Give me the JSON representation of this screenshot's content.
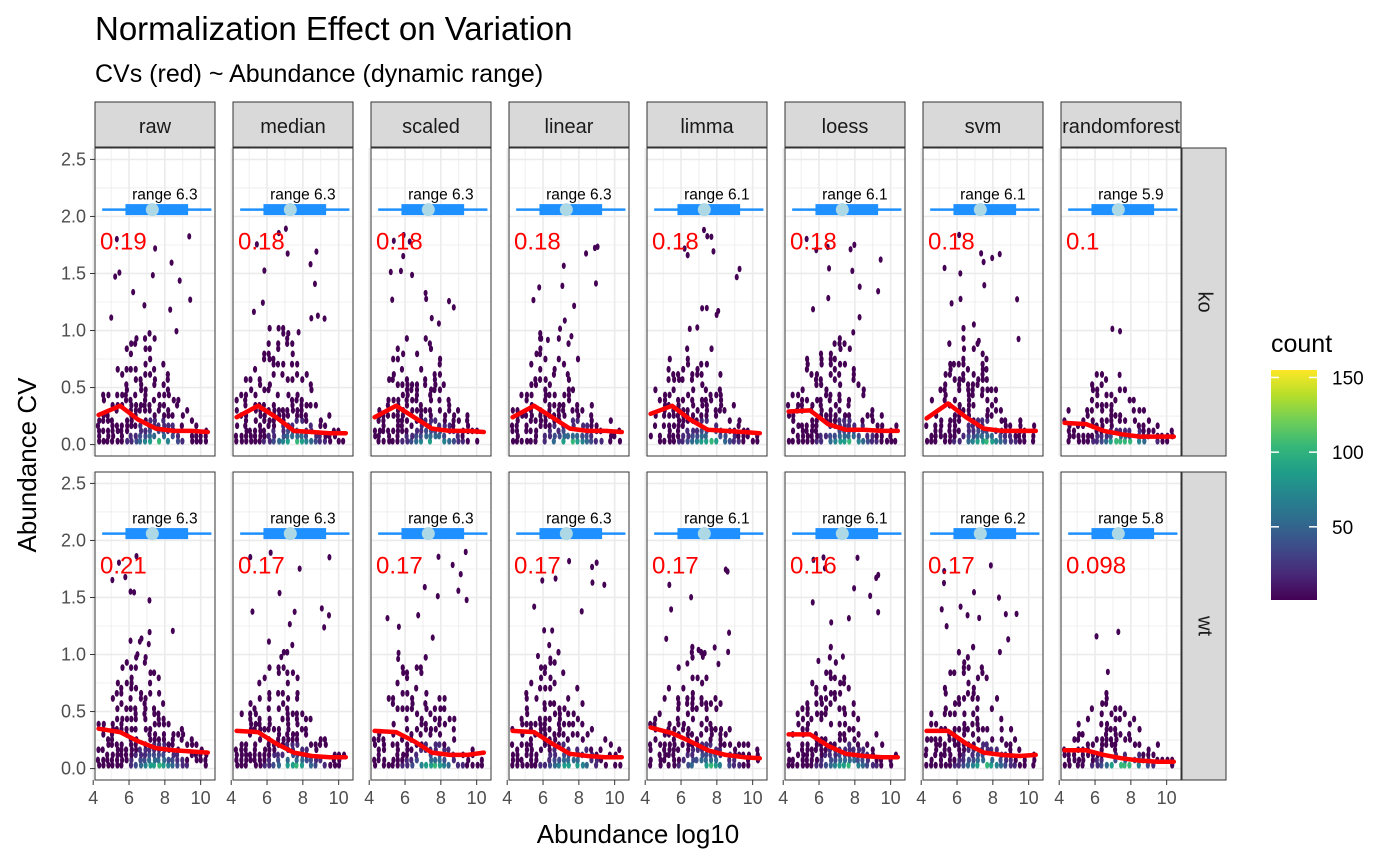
{
  "chart_data": {
    "type": "heatmap",
    "title": "Normalization Effect on Variation",
    "subtitle": "CVs (red) ~ Abundance (dynamic range)",
    "xlabel": "Abundance log10",
    "ylabel": "Abundance CV",
    "xlim": [
      4.1,
      10.8
    ],
    "ylim": [
      -0.1,
      2.6
    ],
    "x_ticks": [
      4,
      6,
      8,
      10
    ],
    "y_ticks": [
      0.0,
      0.5,
      1.0,
      1.5,
      2.0,
      2.5
    ],
    "x_tick_labels": [
      "4",
      "6",
      "8",
      "10"
    ],
    "y_tick_labels": [
      "0.0",
      "0.5",
      "1.0",
      "1.5",
      "2.0",
      "2.5"
    ],
    "grid": true,
    "columns": [
      "raw",
      "median",
      "scaled",
      "linear",
      "limma",
      "loess",
      "svm",
      "randomforest"
    ],
    "rows": [
      "ko",
      "wt"
    ],
    "range_prefix": "range",
    "range_box": {
      "y": 2.06,
      "whisker": [
        4.5,
        10.6
      ],
      "box": [
        5.8,
        9.3
      ],
      "median": 7.3
    },
    "range_labels": [
      [
        "6.3",
        "6.3",
        "6.3",
        "6.3",
        "6.1",
        "6.1",
        "6.1",
        "5.9"
      ],
      [
        "6.3",
        "6.3",
        "6.3",
        "6.3",
        "6.1",
        "6.1",
        "6.2",
        "5.8"
      ]
    ],
    "cv_labels": [
      [
        "0.19",
        "0.18",
        "0.18",
        "0.18",
        "0.18",
        "0.18",
        "0.18",
        "0.1"
      ],
      [
        "0.21",
        "0.17",
        "0.17",
        "0.17",
        "0.17",
        "0.16",
        "0.17",
        "0.098"
      ]
    ],
    "trend_x": [
      4.3,
      5.5,
      6.5,
      7.5,
      8.5,
      9.5,
      10.4
    ],
    "trend_y": [
      [
        [
          0.26,
          0.34,
          0.22,
          0.14,
          0.12,
          0.12,
          0.11
        ],
        [
          0.24,
          0.34,
          0.24,
          0.12,
          0.11,
          0.1,
          0.1
        ],
        [
          0.24,
          0.34,
          0.24,
          0.14,
          0.12,
          0.12,
          0.11
        ],
        [
          0.24,
          0.34,
          0.24,
          0.14,
          0.12,
          0.12,
          0.11
        ],
        [
          0.27,
          0.34,
          0.22,
          0.13,
          0.12,
          0.11,
          0.1
        ],
        [
          0.29,
          0.3,
          0.18,
          0.13,
          0.13,
          0.12,
          0.12
        ],
        [
          0.23,
          0.36,
          0.24,
          0.14,
          0.12,
          0.12,
          0.12
        ],
        [
          0.19,
          0.18,
          0.12,
          0.09,
          0.07,
          0.07,
          0.07
        ]
      ],
      [
        [
          0.35,
          0.32,
          0.24,
          0.18,
          0.16,
          0.15,
          0.14
        ],
        [
          0.33,
          0.32,
          0.22,
          0.14,
          0.11,
          0.1,
          0.1
        ],
        [
          0.33,
          0.32,
          0.24,
          0.14,
          0.12,
          0.12,
          0.14
        ],
        [
          0.33,
          0.32,
          0.22,
          0.13,
          0.11,
          0.1,
          0.1
        ],
        [
          0.36,
          0.31,
          0.24,
          0.16,
          0.12,
          0.1,
          0.09
        ],
        [
          0.3,
          0.3,
          0.2,
          0.13,
          0.11,
          0.1,
          0.1
        ],
        [
          0.33,
          0.33,
          0.22,
          0.14,
          0.12,
          0.11,
          0.12
        ],
        [
          0.16,
          0.16,
          0.12,
          0.09,
          0.07,
          0.06,
          0.06
        ]
      ]
    ],
    "legend": {
      "title": "count",
      "ticks": [
        50,
        100,
        150
      ],
      "min": 1,
      "max": 155,
      "placement": "right"
    },
    "colormap": "viridis",
    "colors": {
      "trend": "#ff0000",
      "cv_text": "#ff0000",
      "range_line": "#1e90ff",
      "range_box": "#1e90ff",
      "range_median": "#add8e6",
      "strip_fill": "#d9d9d9",
      "grid": "#ebebeb",
      "viridis": [
        "#440154",
        "#482878",
        "#3e4a89",
        "#31688e",
        "#26828e",
        "#1f9e89",
        "#35b779",
        "#6ece58",
        "#b5de2b",
        "#fde725"
      ]
    }
  }
}
